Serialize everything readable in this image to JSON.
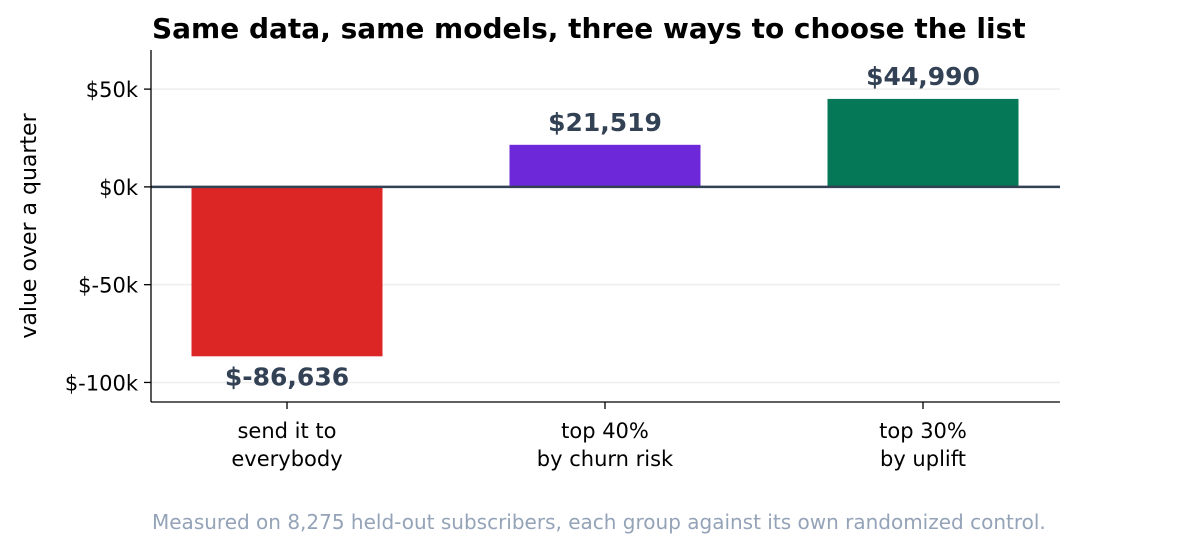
{
  "chart_data": {
    "type": "bar",
    "title": "Same data, same models, three ways to choose the list",
    "xlabel": "",
    "ylabel": "value over a quarter",
    "ylim": [
      -110000,
      70000
    ],
    "yticks": [
      50000,
      0,
      -50000,
      -100000
    ],
    "ytick_labels": [
      "$50k",
      "$0k",
      "$-50k",
      "$-100k"
    ],
    "grid": true,
    "categories": [
      [
        "send it to",
        "everybody"
      ],
      [
        "top 40%",
        "by churn risk"
      ],
      [
        "top 30%",
        "by uplift"
      ]
    ],
    "values": [
      -86636,
      21519,
      44990
    ],
    "data_labels": [
      "$-86,636",
      "$21,519",
      "$44,990"
    ],
    "colors": [
      "#dc2626",
      "#6d28d9",
      "#047857"
    ],
    "caption": "Measured on 8,275 held-out subscribers, each group against its own randomized control."
  }
}
